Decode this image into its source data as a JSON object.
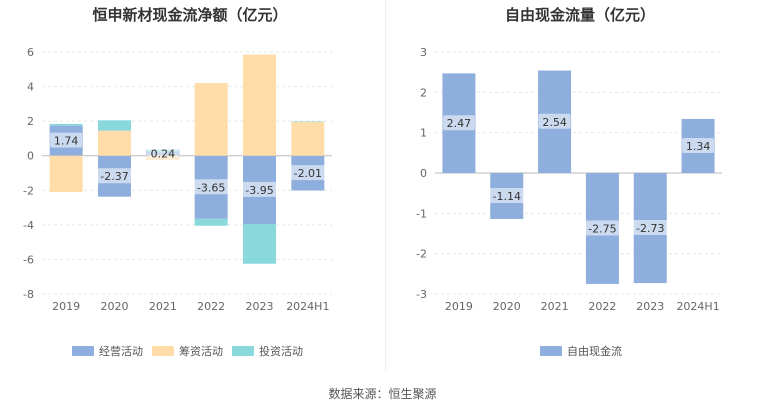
{
  "source_text": "数据来源：恒生聚源",
  "chart_data": [
    {
      "type": "bar",
      "stacked": true,
      "title": "恒申新材现金流净额（亿元）",
      "categories": [
        "2019",
        "2020",
        "2021",
        "2022",
        "2023",
        "2024H1"
      ],
      "ylim": [
        -8,
        6
      ],
      "yticks": [
        6,
        4,
        2,
        0,
        -2,
        -4,
        -6,
        -8
      ],
      "legend_position": "bottom",
      "grid": true,
      "series": [
        {
          "name": "经营活动",
          "color": "#8eaedd",
          "values": [
            1.74,
            -2.37,
            0.24,
            -3.65,
            -3.95,
            -2.01
          ]
        },
        {
          "name": "筹资活动",
          "color": "#ffdca8",
          "values": [
            -2.1,
            1.45,
            -0.25,
            4.2,
            5.85,
            1.95
          ]
        },
        {
          "name": "投资活动",
          "color": "#88d8dc",
          "values": [
            0.1,
            0.6,
            0.12,
            -0.4,
            -2.3,
            0.03
          ]
        }
      ],
      "data_labels": [
        "1.74",
        "-2.37",
        "0.24",
        "-3.65",
        "-3.95",
        "-2.01"
      ]
    },
    {
      "type": "bar",
      "title": "自由现金流量（亿元）",
      "categories": [
        "2019",
        "2020",
        "2021",
        "2022",
        "2023",
        "2024H1"
      ],
      "ylim": [
        -3,
        3
      ],
      "yticks": [
        3,
        2,
        1,
        0,
        -1,
        -2,
        -3
      ],
      "legend_position": "bottom",
      "grid": true,
      "series": [
        {
          "name": "自由现金流",
          "color": "#8eaedd",
          "values": [
            2.47,
            -1.14,
            2.54,
            -2.75,
            -2.73,
            1.34
          ]
        }
      ],
      "data_labels": [
        "2.47",
        "-1.14",
        "2.54",
        "-2.75",
        "-2.73",
        "1.34"
      ]
    }
  ]
}
